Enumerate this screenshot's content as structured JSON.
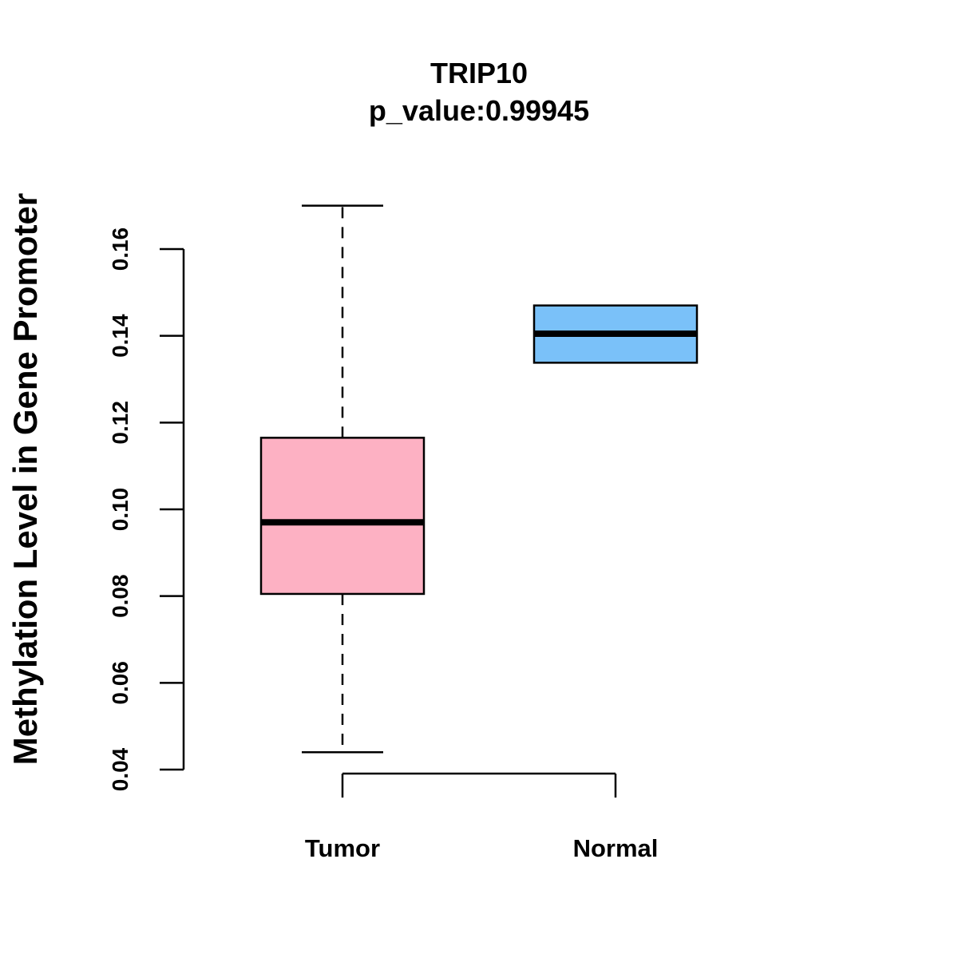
{
  "chart_data": {
    "type": "boxplot",
    "title": "TRIP10",
    "subtitle": "p_value:0.99945",
    "ylabel": "Methylation Level in Gene Promoter",
    "xlabel": "",
    "ylim": [
      0.04,
      0.16
    ],
    "yticks": [
      0.04,
      0.06,
      0.08,
      0.1,
      0.12,
      0.14,
      0.16
    ],
    "ytick_labels": [
      "0.04",
      "0.06",
      "0.08",
      "0.10",
      "0.12",
      "0.14",
      "0.16"
    ],
    "categories": [
      "Tumor",
      "Normal"
    ],
    "boxes": [
      {
        "name": "Tumor",
        "whisker_low": 0.044,
        "q1": 0.0805,
        "median": 0.097,
        "q3": 0.1165,
        "whisker_high": 0.17,
        "color": "#fdb1c3"
      },
      {
        "name": "Normal",
        "whisker_low": 0.1338,
        "q1": 0.1338,
        "median": 0.1405,
        "q3": 0.147,
        "whisker_high": 0.147,
        "color": "#7ac1f9"
      }
    ],
    "grid": false,
    "legend": "none"
  }
}
